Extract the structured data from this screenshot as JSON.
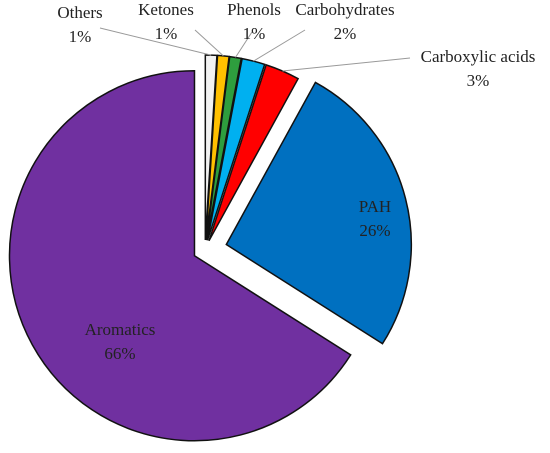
{
  "chart_data": {
    "type": "pie",
    "categories": [
      "Others",
      "Ketones",
      "Phenols",
      "Carbohydrates",
      "Carboxylic acids",
      "PAH",
      "Aromatics"
    ],
    "values": [
      1,
      1,
      1,
      2,
      3,
      26,
      66
    ],
    "value_labels": [
      "1%",
      "1%",
      "1%",
      "2%",
      "3%",
      "26%",
      "66%"
    ],
    "colors": [
      "#f2f2f2",
      "#ffc000",
      "#2e9e3e",
      "#00b0f0",
      "#ff0000",
      "#0070c0",
      "#7030a0"
    ]
  }
}
